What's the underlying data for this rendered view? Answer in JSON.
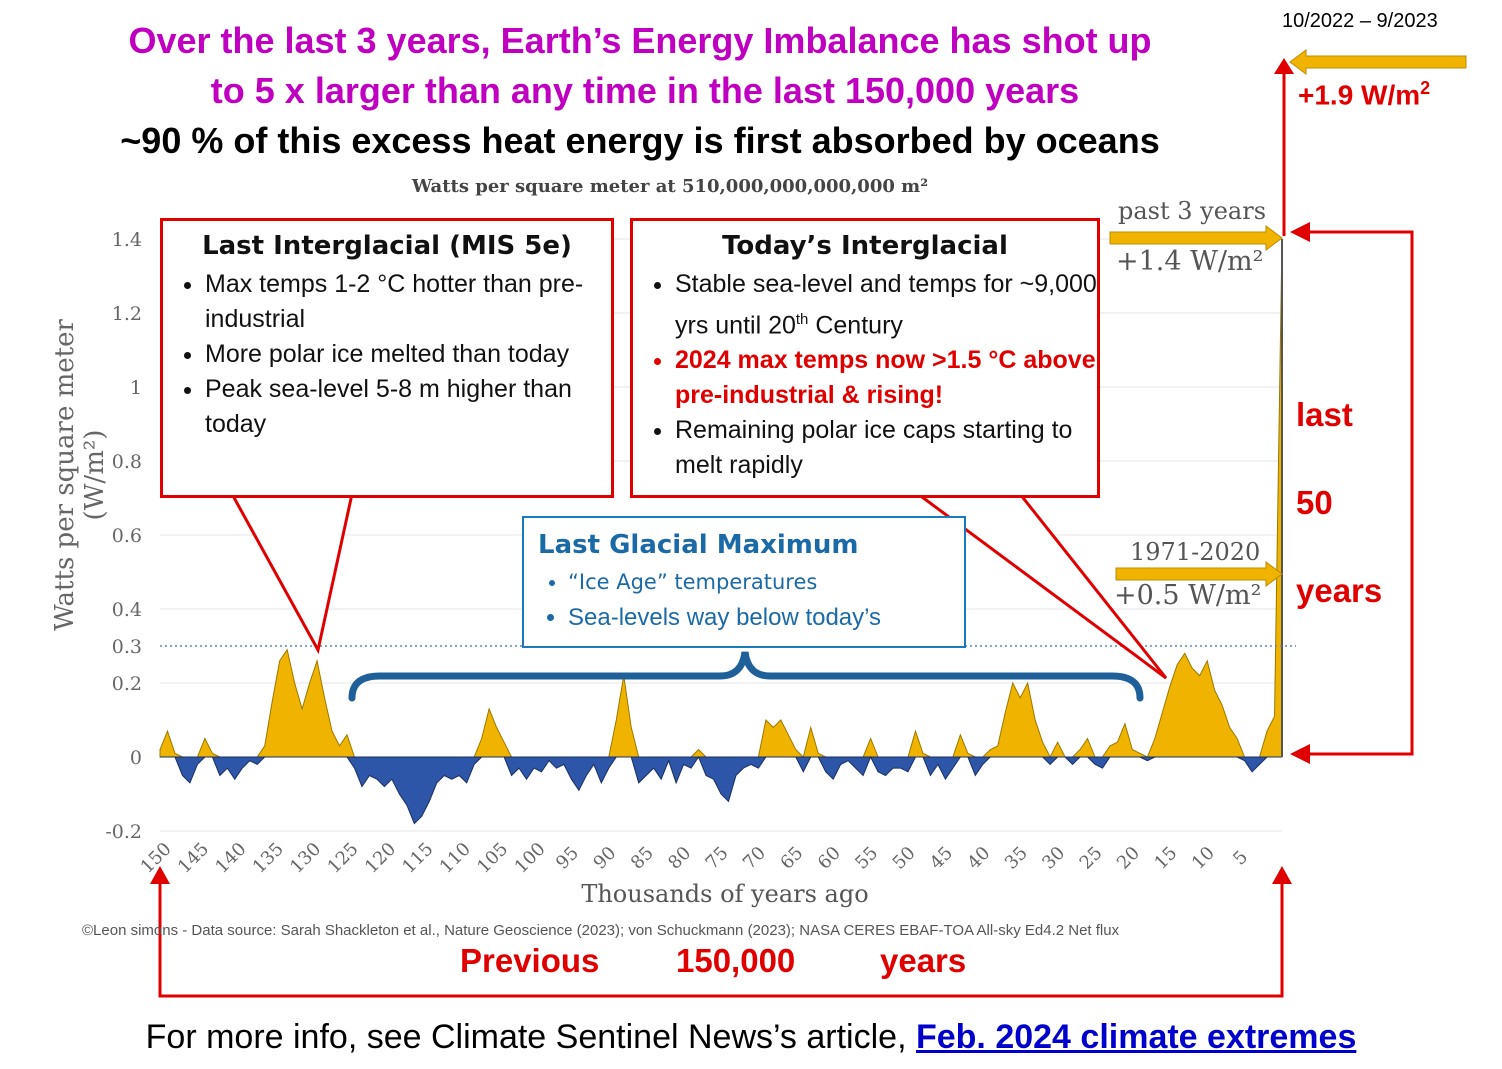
{
  "headline": {
    "line1_pre": "Over the last 3 years,",
    "line1_em": "Earth’s Energy Imbalance",
    "line1_post": "has shot up",
    "line2": "to 5 x larger than any time in the last 150,000 years",
    "line3": "~90 % of this excess heat energy is first absorbed by oceans"
  },
  "recent": {
    "date_range": "10/2022 – 9/2023",
    "flux_pre": "+1.9 W/m",
    "flux_sup": "2"
  },
  "chart_data": {
    "type": "area",
    "title": "Watts per square meter at 510,000,000,000,000 m²",
    "xlabel": "Thousands of years ago",
    "ylabel": "Watts per square meter (W/m²)",
    "xlim": [
      150,
      0
    ],
    "ylim": [
      -0.2,
      1.4
    ],
    "y_ticks": [
      "1.4",
      "1.2",
      "1",
      "0.8",
      "0.6",
      "0.4",
      "0.3",
      "0.2",
      "0",
      "-0.2"
    ],
    "x_ticks": [
      "150",
      "145",
      "140",
      "135",
      "130",
      "125",
      "120",
      "115",
      "110",
      "105",
      "100",
      "95",
      "90",
      "85",
      "80",
      "75",
      "70",
      "65",
      "60",
      "55",
      "50",
      "45",
      "40",
      "35",
      "30",
      "25",
      "20",
      "15",
      "10",
      "5"
    ],
    "reference_line": 0.3,
    "positive_color": "#f0b400",
    "negative_color": "#2d55a8",
    "x": [
      150,
      149,
      148,
      147,
      146,
      145,
      144,
      143,
      142,
      141,
      140,
      139,
      138,
      137,
      136,
      135,
      134,
      133,
      132,
      131,
      130,
      129,
      128,
      127,
      126,
      125,
      124,
      123,
      122,
      121,
      120,
      119,
      118,
      117,
      116,
      115,
      114,
      113,
      112,
      111,
      110,
      109,
      108,
      107,
      106,
      105,
      104,
      103,
      102,
      101,
      100,
      99,
      98,
      97,
      96,
      95,
      94,
      93,
      92,
      91,
      90,
      89,
      88,
      87,
      86,
      85,
      84,
      83,
      82,
      81,
      80,
      79,
      78,
      77,
      76,
      75,
      74,
      73,
      72,
      71,
      70,
      69,
      68,
      67,
      66,
      65,
      64,
      63,
      62,
      61,
      60,
      59,
      58,
      57,
      56,
      55,
      54,
      53,
      52,
      51,
      50,
      49,
      48,
      47,
      46,
      45,
      44,
      43,
      42,
      41,
      40,
      39,
      38,
      37,
      36,
      35,
      34,
      33,
      32,
      31,
      30,
      29,
      28,
      27,
      26,
      25,
      24,
      23,
      22,
      21,
      20,
      19,
      18,
      17,
      16,
      15,
      14,
      13,
      12,
      11,
      10,
      9,
      8,
      7,
      6,
      5,
      4,
      3,
      2,
      1,
      0
    ],
    "y": [
      0.02,
      0.07,
      0.01,
      -0.05,
      -0.07,
      -0.02,
      0.05,
      0.01,
      -0.05,
      -0.03,
      -0.06,
      -0.03,
      -0.01,
      -0.02,
      0.03,
      0.15,
      0.26,
      0.29,
      0.2,
      0.13,
      0.2,
      0.26,
      0.16,
      0.07,
      0.03,
      0.06,
      -0.03,
      -0.08,
      -0.05,
      -0.06,
      -0.08,
      -0.06,
      -0.1,
      -0.13,
      -0.18,
      -0.16,
      -0.12,
      -0.07,
      -0.05,
      -0.06,
      -0.05,
      -0.07,
      -0.02,
      0.05,
      0.13,
      0.08,
      0.04,
      -0.05,
      -0.03,
      -0.06,
      -0.03,
      -0.04,
      -0.01,
      -0.03,
      -0.02,
      -0.06,
      -0.09,
      -0.05,
      -0.02,
      -0.07,
      -0.03,
      0.1,
      0.22,
      0.08,
      -0.07,
      -0.05,
      -0.03,
      -0.06,
      -0.01,
      -0.07,
      -0.02,
      -0.03,
      0.02,
      -0.05,
      -0.06,
      -0.1,
      -0.12,
      -0.05,
      -0.03,
      -0.02,
      -0.03,
      0.1,
      0.08,
      0.1,
      0.06,
      0.02,
      -0.04,
      0.08,
      0.01,
      -0.04,
      -0.06,
      -0.02,
      -0.01,
      -0.03,
      -0.05,
      0.05,
      -0.04,
      -0.05,
      -0.03,
      -0.03,
      -0.04,
      0.07,
      0.01,
      -0.05,
      -0.02,
      -0.06,
      -0.03,
      0.06,
      0.01,
      -0.05,
      -0.02,
      0.02,
      0.03,
      0.12,
      0.2,
      0.16,
      0.2,
      0.1,
      0.04,
      -0.02,
      0.04,
      0.0,
      -0.02,
      0.02,
      0.05,
      -0.02,
      -0.03,
      0.03,
      0.04,
      0.09,
      0.02,
      0.01,
      -0.01,
      0.05,
      0.12,
      0.19,
      0.25,
      0.28,
      0.24,
      0.22,
      0.26,
      0.18,
      0.14,
      0.08,
      0.05,
      -0.01,
      -0.04,
      -0.02,
      0.07,
      0.11,
      1.4
    ]
  },
  "annotations": {
    "past3": {
      "label": "past 3 years",
      "value": "+1.4 W/m²"
    },
    "period1971": {
      "label": "1971-2020",
      "value": "+0.5 W/m²"
    },
    "last50": [
      "last",
      "50",
      "years"
    ],
    "previous": [
      "Previous",
      "150,000",
      "years"
    ]
  },
  "boxes": {
    "mis5e": {
      "title": "Last Interglacial (MIS 5e)",
      "items": [
        "Max temps 1-2 °C hotter than pre-industrial",
        "More polar ice melted than today",
        "Peak sea-level 5-8 m higher than today"
      ]
    },
    "today": {
      "title": "Today’s Interglacial",
      "item1_pre": "Stable sea-level and temps for ~9,000 yrs until 20",
      "item1_sup": "th",
      "item1_post": " Century",
      "item2": "2024 max temps now >1.5 °C above pre-industrial & rising!",
      "item3": "Remaining polar ice caps starting to melt rapidly"
    },
    "lgm": {
      "title": "Last Glacial Maximum",
      "items": [
        "“Ice Age” temperatures",
        "Sea-levels way below today’s"
      ]
    }
  },
  "credit": "©Leon simons - Data source: Sarah Shackleton et al., Nature Geoscience (2023); von Schuckmann (2023); NASA CERES EBAF-TOA All-sky Ed4.2 Net flux",
  "footer": {
    "text": "For more info, see Climate Sentinel News’s article, ",
    "link": "Feb. 2024 climate extremes"
  }
}
